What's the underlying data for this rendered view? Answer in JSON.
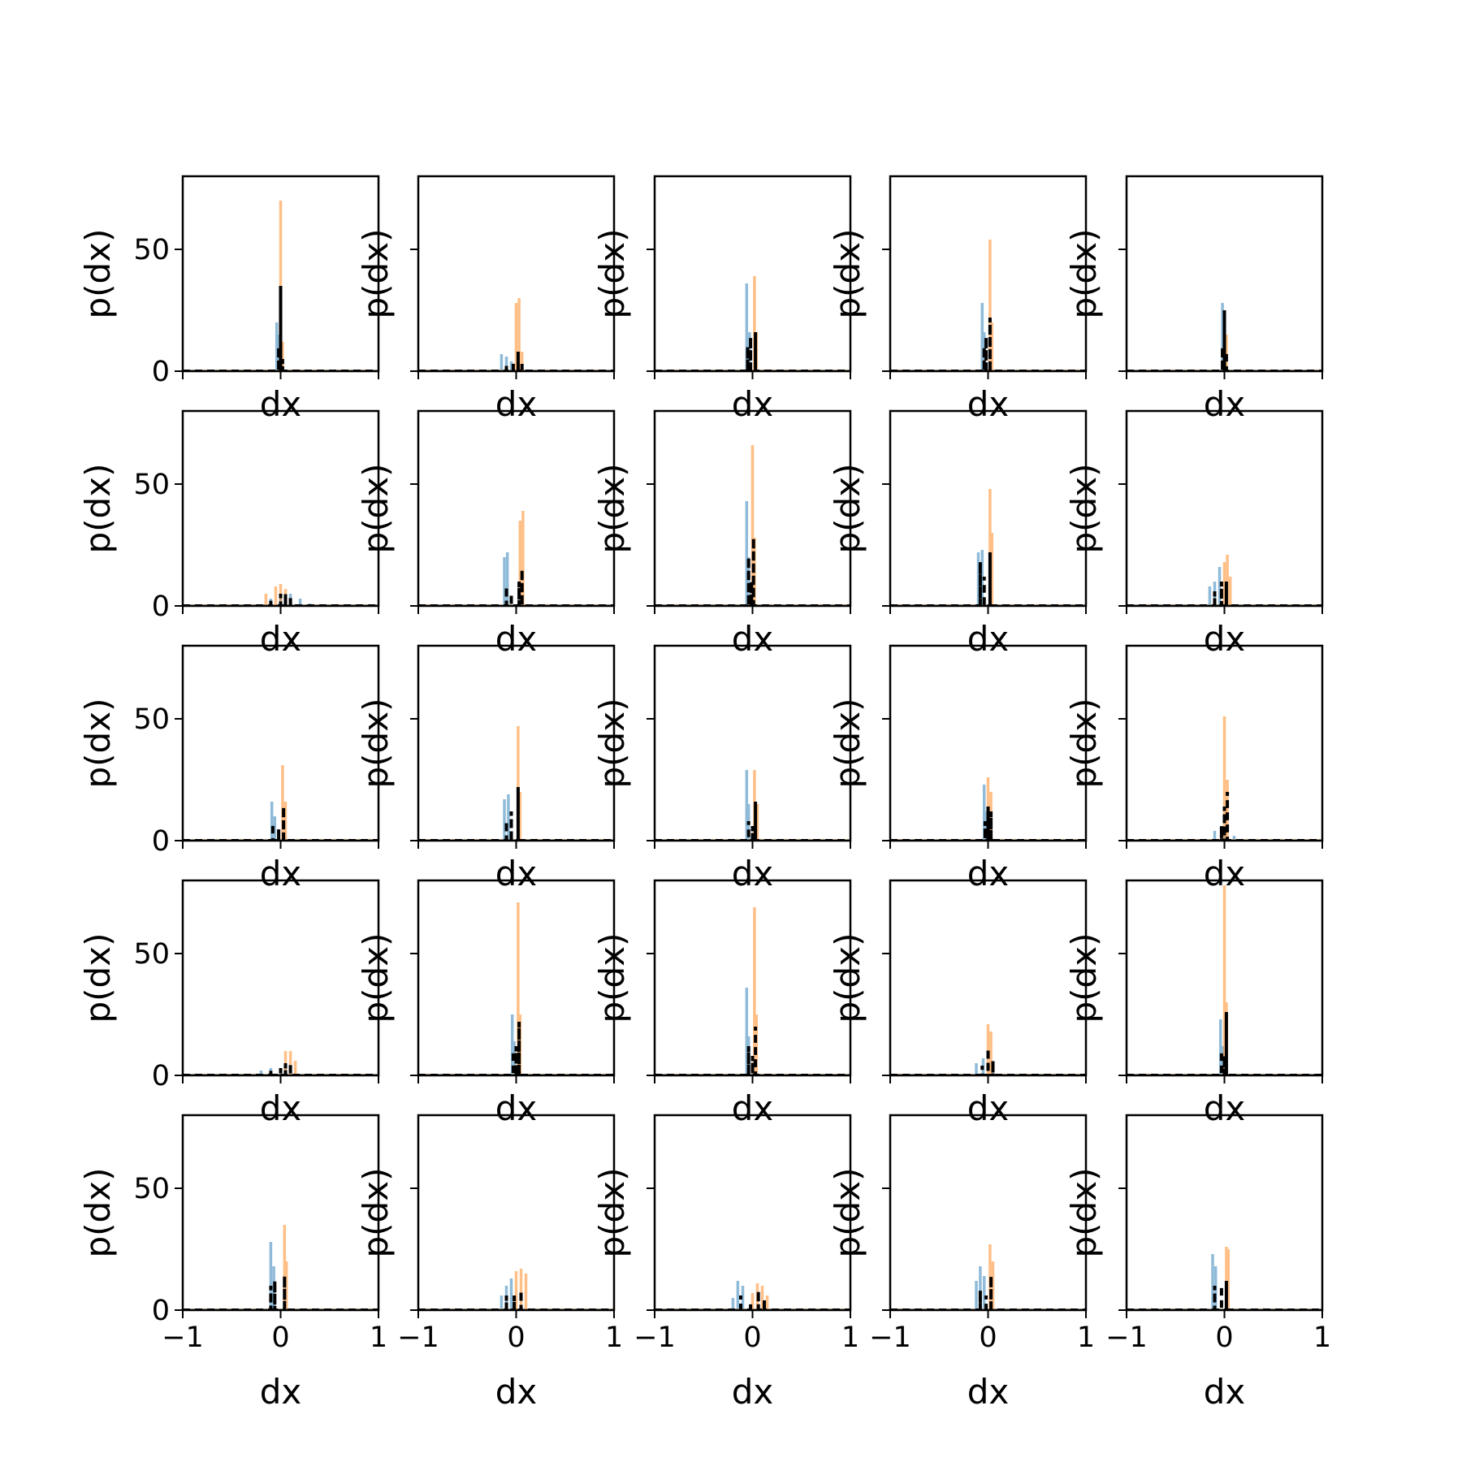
{
  "figure": {
    "rows": 5,
    "cols": 5,
    "xlim": [
      -1,
      1
    ],
    "ylim": [
      0,
      80
    ],
    "xlabel": "dx",
    "ylabel": "p(dx)",
    "yticks": [
      0,
      50
    ],
    "xticks": [
      -1,
      0,
      1
    ],
    "xtick_labels": [
      "−1",
      "0",
      "1"
    ],
    "colors": {
      "blue": "#1f77b4",
      "orange": "#ff7f0e",
      "dashed": "#000000"
    }
  },
  "chart_data": [
    {
      "type": "line",
      "blue": {
        "x": [
          -0.04,
          -0.02
        ],
        "y": [
          20,
          15
        ]
      },
      "orange": {
        "x": [
          0,
          0.02
        ],
        "y": [
          70,
          12
        ]
      },
      "dashed": {
        "x": [
          -0.02,
          0,
          0.02
        ],
        "y": [
          10,
          35,
          5
        ]
      }
    },
    {
      "type": "line",
      "blue": {
        "x": [
          -0.15,
          -0.1,
          -0.05
        ],
        "y": [
          7,
          6,
          4
        ]
      },
      "orange": {
        "x": [
          0,
          0.03,
          0.06
        ],
        "y": [
          28,
          30,
          8
        ]
      },
      "dashed": {
        "x": [
          -0.1,
          -0.03,
          0.02,
          0.06
        ],
        "y": [
          3,
          4,
          8,
          3
        ]
      }
    },
    {
      "type": "line",
      "blue": {
        "x": [
          -0.06,
          -0.03
        ],
        "y": [
          36,
          16
        ]
      },
      "orange": {
        "x": [
          0.02,
          0.04
        ],
        "y": [
          39,
          16
        ]
      },
      "dashed": {
        "x": [
          -0.05,
          -0.02,
          0.03
        ],
        "y": [
          10,
          14,
          16
        ]
      }
    },
    {
      "type": "line",
      "blue": {
        "x": [
          -0.06,
          -0.04
        ],
        "y": [
          28,
          16
        ]
      },
      "orange": {
        "x": [
          0.02,
          0.04
        ],
        "y": [
          54,
          20
        ]
      },
      "dashed": {
        "x": [
          -0.04,
          -0.02,
          0.02
        ],
        "y": [
          10,
          14,
          22
        ]
      }
    },
    {
      "type": "line",
      "blue": {
        "x": [
          -0.02,
          0
        ],
        "y": [
          28,
          20
        ]
      },
      "orange": {
        "x": [
          0,
          0.02
        ],
        "y": [
          24,
          15
        ]
      },
      "dashed": {
        "x": [
          -0.02,
          0,
          0.02
        ],
        "y": [
          10,
          25,
          8
        ]
      }
    },
    {
      "type": "line",
      "blue": {
        "x": [
          -0.1,
          0,
          0.1,
          0.2,
          0.3
        ],
        "y": [
          3,
          5,
          5,
          3,
          1
        ]
      },
      "orange": {
        "x": [
          -0.15,
          -0.05,
          0,
          0.05
        ],
        "y": [
          5,
          8,
          9,
          7
        ]
      },
      "dashed": {
        "x": [
          -0.1,
          0,
          0.05,
          0.1
        ],
        "y": [
          3,
          5,
          5,
          4
        ]
      }
    },
    {
      "type": "line",
      "blue": {
        "x": [
          -0.12,
          -0.09
        ],
        "y": [
          20,
          22
        ]
      },
      "orange": {
        "x": [
          0.04,
          0.07
        ],
        "y": [
          35,
          39
        ]
      },
      "dashed": {
        "x": [
          -0.1,
          -0.05,
          0.03,
          0.06
        ],
        "y": [
          8,
          5,
          10,
          15
        ]
      }
    },
    {
      "type": "line",
      "blue": {
        "x": [
          -0.06,
          -0.04
        ],
        "y": [
          43,
          20
        ]
      },
      "orange": {
        "x": [
          0,
          0.02
        ],
        "y": [
          66,
          28
        ]
      },
      "dashed": {
        "x": [
          -0.04,
          -0.01,
          0.01
        ],
        "y": [
          20,
          10,
          28
        ]
      }
    },
    {
      "type": "line",
      "blue": {
        "x": [
          -0.1,
          -0.06
        ],
        "y": [
          22,
          23
        ]
      },
      "orange": {
        "x": [
          0.02,
          0.04
        ],
        "y": [
          48,
          30
        ]
      },
      "dashed": {
        "x": [
          -0.08,
          -0.04,
          0.02
        ],
        "y": [
          18,
          12,
          22
        ]
      }
    },
    {
      "type": "line",
      "blue": {
        "x": [
          -0.15,
          -0.1,
          -0.05
        ],
        "y": [
          8,
          10,
          16
        ]
      },
      "orange": {
        "x": [
          0,
          0.03,
          0.06
        ],
        "y": [
          18,
          21,
          12
        ]
      },
      "dashed": {
        "x": [
          -0.1,
          -0.03,
          0.02
        ],
        "y": [
          6,
          10,
          10
        ]
      }
    },
    {
      "type": "line",
      "blue": {
        "x": [
          -0.09,
          -0.06
        ],
        "y": [
          16,
          10
        ]
      },
      "orange": {
        "x": [
          0.02,
          0.05
        ],
        "y": [
          31,
          16
        ]
      },
      "dashed": {
        "x": [
          -0.08,
          -0.02,
          0.03
        ],
        "y": [
          7,
          5,
          14
        ]
      }
    },
    {
      "type": "line",
      "blue": {
        "x": [
          -0.12,
          -0.08
        ],
        "y": [
          17,
          19
        ]
      },
      "orange": {
        "x": [
          0.02,
          0.04
        ],
        "y": [
          47,
          20
        ]
      },
      "dashed": {
        "x": [
          -0.1,
          -0.05,
          0.02
        ],
        "y": [
          8,
          12,
          22
        ]
      }
    },
    {
      "type": "line",
      "blue": {
        "x": [
          -0.06,
          -0.04
        ],
        "y": [
          29,
          15
        ]
      },
      "orange": {
        "x": [
          0.02,
          0.05
        ],
        "y": [
          29,
          15
        ]
      },
      "dashed": {
        "x": [
          -0.04,
          0,
          0.03
        ],
        "y": [
          8,
          6,
          16
        ]
      }
    },
    {
      "type": "line",
      "blue": {
        "x": [
          -0.04,
          -0.02
        ],
        "y": [
          23,
          12
        ]
      },
      "orange": {
        "x": [
          0,
          0.03
        ],
        "y": [
          26,
          20
        ]
      },
      "dashed": {
        "x": [
          -0.03,
          0,
          0.03
        ],
        "y": [
          8,
          14,
          12
        ]
      }
    },
    {
      "type": "line",
      "blue": {
        "x": [
          -0.1,
          0,
          0.1
        ],
        "y": [
          4,
          3,
          2
        ]
      },
      "orange": {
        "x": [
          0,
          0.03
        ],
        "y": [
          51,
          25
        ]
      },
      "dashed": {
        "x": [
          -0.03,
          0,
          0.03
        ],
        "y": [
          6,
          14,
          20
        ]
      }
    },
    {
      "type": "line",
      "blue": {
        "x": [
          -0.2,
          -0.1,
          0
        ],
        "y": [
          2,
          3,
          2
        ]
      },
      "orange": {
        "x": [
          0.05,
          0.1,
          0.15
        ],
        "y": [
          10,
          10,
          6
        ]
      },
      "dashed": {
        "x": [
          -0.1,
          0,
          0.05,
          0.1
        ],
        "y": [
          2,
          3,
          5,
          5
        ]
      }
    },
    {
      "type": "line",
      "blue": {
        "x": [
          -0.04,
          -0.02
        ],
        "y": [
          25,
          14
        ]
      },
      "orange": {
        "x": [
          0.02,
          0.04
        ],
        "y": [
          71,
          25
        ]
      },
      "dashed": {
        "x": [
          -0.03,
          0,
          0.03
        ],
        "y": [
          10,
          12,
          22
        ]
      }
    },
    {
      "type": "line",
      "blue": {
        "x": [
          -0.06,
          -0.04
        ],
        "y": [
          36,
          16
        ]
      },
      "orange": {
        "x": [
          0.02,
          0.04
        ],
        "y": [
          69,
          25
        ]
      },
      "dashed": {
        "x": [
          -0.04,
          0,
          0.03
        ],
        "y": [
          12,
          8,
          20
        ]
      }
    },
    {
      "type": "line",
      "blue": {
        "x": [
          -0.12,
          -0.05
        ],
        "y": [
          5,
          7
        ]
      },
      "orange": {
        "x": [
          0,
          0.03
        ],
        "y": [
          21,
          18
        ]
      },
      "dashed": {
        "x": [
          -0.06,
          0,
          0.05
        ],
        "y": [
          4,
          11,
          6
        ]
      }
    },
    {
      "type": "line",
      "blue": {
        "x": [
          -0.04,
          -0.02
        ],
        "y": [
          23,
          12
        ]
      },
      "orange": {
        "x": [
          0,
          0.02
        ],
        "y": [
          78,
          30
        ]
      },
      "dashed": {
        "x": [
          -0.03,
          0,
          0.02
        ],
        "y": [
          10,
          8,
          26
        ]
      }
    },
    {
      "type": "line",
      "blue": {
        "x": [
          -0.1,
          -0.07
        ],
        "y": [
          28,
          18
        ]
      },
      "orange": {
        "x": [
          0.04,
          0.06
        ],
        "y": [
          35,
          20
        ]
      },
      "dashed": {
        "x": [
          -0.1,
          -0.06,
          0.04
        ],
        "y": [
          10,
          12,
          14
        ]
      }
    },
    {
      "type": "line",
      "blue": {
        "x": [
          -0.15,
          -0.1,
          -0.05
        ],
        "y": [
          6,
          10,
          13
        ]
      },
      "orange": {
        "x": [
          0,
          0.05,
          0.1
        ],
        "y": [
          16,
          17,
          15
        ]
      },
      "dashed": {
        "x": [
          -0.1,
          -0.02,
          0.05
        ],
        "y": [
          6,
          6,
          8
        ]
      }
    },
    {
      "type": "line",
      "blue": {
        "x": [
          -0.2,
          -0.15,
          -0.1
        ],
        "y": [
          5,
          12,
          10
        ]
      },
      "orange": {
        "x": [
          0,
          0.05,
          0.1,
          0.15
        ],
        "y": [
          7,
          11,
          10,
          6
        ]
      },
      "dashed": {
        "x": [
          -0.12,
          -0.02,
          0.06,
          0.12
        ],
        "y": [
          6,
          3,
          8,
          4
        ]
      }
    },
    {
      "type": "line",
      "blue": {
        "x": [
          -0.12,
          -0.08,
          -0.04
        ],
        "y": [
          12,
          18,
          14
        ]
      },
      "orange": {
        "x": [
          0.02,
          0.05
        ],
        "y": [
          27,
          20
        ]
      },
      "dashed": {
        "x": [
          -0.08,
          -0.02,
          0.03
        ],
        "y": [
          8,
          6,
          14
        ]
      }
    },
    {
      "type": "line",
      "blue": {
        "x": [
          -0.12,
          -0.09
        ],
        "y": [
          23,
          18
        ]
      },
      "orange": {
        "x": [
          0.02,
          0.04
        ],
        "y": [
          26,
          25
        ]
      },
      "dashed": {
        "x": [
          -0.1,
          -0.03,
          0.02
        ],
        "y": [
          10,
          10,
          12
        ]
      }
    }
  ]
}
